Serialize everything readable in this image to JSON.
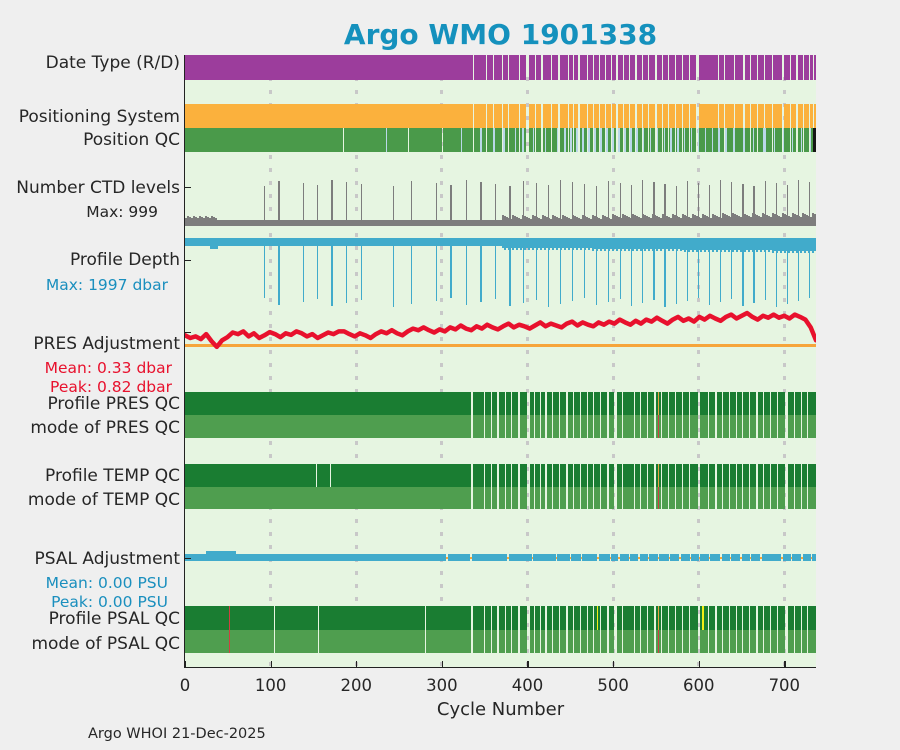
{
  "title": "Argo WMO 1901338",
  "credit": "Argo WHOI 21-Dec-2025",
  "labels": {
    "date_type": "Date Type (R/D)",
    "positioning_system": "Positioning System",
    "position_qc": "Position QC",
    "ctd_levels": "Number CTD levels",
    "ctd_max": "Max: 999",
    "profile_depth": "Profile Depth",
    "depth_max": "Max: 1997 dbar",
    "pres_adj": "PRES Adjustment",
    "pres_mean": "Mean: 0.33 dbar",
    "pres_peak": "Peak: 0.82 dbar",
    "profile_pres_qc": "Profile PRES QC",
    "mode_pres_qc": "mode of PRES QC",
    "profile_temp_qc": "Profile TEMP QC",
    "mode_temp_qc": "mode of TEMP QC",
    "psal_adj": "PSAL Adjustment",
    "psal_mean": "Mean: 0.00 PSU",
    "psal_peak": "Peak: 0.00 PSU",
    "profile_psal_qc": "Profile PSAL QC",
    "mode_psal_qc": "mode of PSAL QC"
  },
  "colors": {
    "background": "#efefef",
    "plot_background": "#e6f5e1",
    "title": "#1591bd",
    "label": "#262626",
    "red_accent": "#e8112d",
    "blue_accent": "#1a8fbe",
    "date_type_band": "#9c3d9c",
    "positioning_band": "#fbb13d",
    "position_qc_band": "#4a9a4a",
    "position_qc_stripe": "#bad8e9",
    "ctd_bar": "#7d7d7d",
    "depth_bar": "#41abcb",
    "zero_line": "#f6a53b",
    "qc_dark": "#1a7d32",
    "qc_mode": "#4f9e4f",
    "mark_red": "#cf4040",
    "mark_yellow": "#f2ee16",
    "mark_orange": "#e8a33d",
    "grid": "#c8c8c8",
    "axis": "#222222",
    "end_cap": "#151515"
  },
  "xaxis": {
    "label": "Cycle Number",
    "ticks": [
      0,
      100,
      200,
      300,
      400,
      500,
      600,
      700
    ]
  },
  "chart_data": {
    "type": "multi-row Argo float QC status chart (bands + time series)",
    "x": {
      "label": "Cycle Number",
      "min": 0,
      "max": 737,
      "ticks": [
        0,
        100,
        200,
        300,
        400,
        500,
        600,
        700
      ]
    },
    "rows": [
      "Date Type (R/D)",
      "Positioning System",
      "Position QC",
      "Number CTD levels",
      "Profile Depth",
      "PRES Adjustment",
      "Profile PRES QC",
      "mode of PRES QC",
      "Profile TEMP QC",
      "mode of TEMP QC",
      "PSAL Adjustment",
      "Profile PSAL QC",
      "mode of PSAL QC"
    ],
    "stats": {
      "ctd_levels_max": 999,
      "profile_depth_max_dbar": 1997,
      "pres_adj_mean_dbar": 0.33,
      "pres_adj_peak_dbar": 0.82,
      "psal_adj_mean_psu": 0.0,
      "psal_adj_peak_psu": 0.0
    },
    "band_gaps": {
      "date_positioning": [
        [
          336,
          2
        ],
        [
          352,
          1
        ],
        [
          360,
          1
        ],
        [
          370,
          1
        ],
        [
          377,
          2
        ],
        [
          390,
          1
        ],
        [
          398,
          4
        ],
        [
          409,
          1
        ],
        [
          416,
          2
        ],
        [
          428,
          1
        ],
        [
          436,
          2
        ],
        [
          447,
          1
        ],
        [
          453,
          1
        ],
        [
          459,
          2
        ],
        [
          470,
          1
        ],
        [
          477,
          1
        ],
        [
          483,
          2
        ],
        [
          491,
          1
        ],
        [
          498,
          1
        ],
        [
          504,
          2
        ],
        [
          512,
          1
        ],
        [
          519,
          1
        ],
        [
          526,
          2
        ],
        [
          534,
          1
        ],
        [
          541,
          1
        ],
        [
          549,
          2
        ],
        [
          557,
          1
        ],
        [
          564,
          1
        ],
        [
          572,
          2
        ],
        [
          581,
          1
        ],
        [
          589,
          1
        ],
        [
          597,
          3
        ],
        [
          608,
          1
        ],
        [
          615,
          1
        ],
        [
          622,
          2
        ],
        [
          630,
          1
        ],
        [
          641,
          1
        ],
        [
          652,
          2
        ],
        [
          660,
          1
        ],
        [
          668,
          1
        ],
        [
          676,
          2
        ],
        [
          686,
          1
        ],
        [
          697,
          3
        ],
        [
          707,
          1
        ],
        [
          714,
          2
        ],
        [
          722,
          1
        ],
        [
          729,
          1
        ],
        [
          734,
          1
        ]
      ],
      "position_qc_extra": [
        [
          185,
          1
        ],
        [
          261,
          1
        ],
        [
          300,
          1
        ]
      ],
      "qc_bands": [
        [
          334,
          2
        ],
        [
          349,
          1
        ],
        [
          357,
          1
        ],
        [
          365,
          2
        ],
        [
          374,
          1
        ],
        [
          381,
          1
        ],
        [
          389,
          2
        ],
        [
          399,
          4
        ],
        [
          408,
          1
        ],
        [
          415,
          1
        ],
        [
          421,
          2
        ],
        [
          429,
          1
        ],
        [
          437,
          1
        ],
        [
          445,
          2
        ],
        [
          453,
          1
        ],
        [
          461,
          1
        ],
        [
          469,
          2
        ],
        [
          477,
          1
        ],
        [
          485,
          1
        ],
        [
          493,
          2
        ],
        [
          501,
          4
        ],
        [
          510,
          1
        ],
        [
          517,
          1
        ],
        [
          524,
          2
        ],
        [
          532,
          1
        ],
        [
          540,
          1
        ],
        [
          548,
          2
        ],
        [
          556,
          1
        ],
        [
          564,
          1
        ],
        [
          572,
          2
        ],
        [
          581,
          1
        ],
        [
          589,
          1
        ],
        [
          599,
          3
        ],
        [
          611,
          1
        ],
        [
          619,
          2
        ],
        [
          627,
          1
        ],
        [
          635,
          1
        ],
        [
          643,
          2
        ],
        [
          651,
          1
        ],
        [
          659,
          1
        ],
        [
          667,
          2
        ],
        [
          675,
          1
        ],
        [
          683,
          1
        ],
        [
          691,
          2
        ],
        [
          701,
          3
        ],
        [
          711,
          1
        ],
        [
          719,
          2
        ],
        [
          727,
          1
        ],
        [
          733,
          1
        ]
      ],
      "temp_dark_extra": [
        [
          153,
          1
        ],
        [
          169,
          1
        ]
      ],
      "psal_extra": [
        [
          104,
          1
        ],
        [
          155,
          1
        ],
        [
          170,
          1
        ],
        [
          280,
          1
        ]
      ]
    },
    "position_qc_stripes": [
      [
        235,
        1
      ],
      [
        322,
        1
      ],
      [
        345,
        1
      ],
      [
        360,
        1
      ],
      [
        372,
        1
      ],
      [
        385,
        1
      ],
      [
        394,
        1
      ],
      [
        406,
        1
      ],
      [
        420,
        1
      ],
      [
        434,
        1
      ],
      [
        443,
        1
      ],
      [
        450,
        1
      ],
      [
        457,
        1
      ],
      [
        464,
        1
      ],
      [
        471,
        1
      ],
      [
        478,
        1
      ],
      [
        485,
        1
      ],
      [
        492,
        1
      ],
      [
        499,
        1
      ],
      [
        506,
        1
      ],
      [
        513,
        1
      ],
      [
        520,
        1
      ],
      [
        527,
        1
      ],
      [
        535,
        1
      ],
      [
        543,
        1
      ],
      [
        551,
        1
      ],
      [
        559,
        1
      ],
      [
        567,
        1
      ],
      [
        575,
        1
      ],
      [
        583,
        1
      ],
      [
        591,
        1
      ],
      [
        599,
        1
      ],
      [
        607,
        1
      ],
      [
        615,
        1
      ],
      [
        623,
        1
      ],
      [
        631,
        1
      ],
      [
        640,
        2
      ],
      [
        652,
        1
      ],
      [
        663,
        1
      ],
      [
        675,
        4
      ],
      [
        688,
        1
      ],
      [
        698,
        1
      ],
      [
        709,
        1
      ],
      [
        719,
        1
      ],
      [
        730,
        1
      ]
    ],
    "spike_cycles": [
      92,
      109,
      138,
      154,
      171,
      188,
      205,
      243,
      264,
      293,
      310,
      328,
      345,
      362,
      379,
      395,
      410,
      424,
      438,
      452,
      466,
      480,
      494,
      508,
      521,
      534,
      547,
      560,
      573,
      586,
      599,
      612,
      625,
      638,
      651,
      664,
      677,
      690,
      703,
      716,
      729
    ],
    "pres_series": {
      "units": "dbar",
      "values": [
        0.25,
        0.18,
        0.22,
        0.15,
        0.28,
        0.1,
        -0.05,
        0.12,
        0.2,
        0.32,
        0.28,
        0.35,
        0.22,
        0.3,
        0.18,
        0.25,
        0.33,
        0.28,
        0.2,
        0.3,
        0.26,
        0.35,
        0.3,
        0.22,
        0.28,
        0.18,
        0.25,
        0.32,
        0.28,
        0.35,
        0.35,
        0.28,
        0.22,
        0.3,
        0.25,
        0.18,
        0.28,
        0.35,
        0.3,
        0.38,
        0.3,
        0.25,
        0.35,
        0.42,
        0.38,
        0.45,
        0.38,
        0.32,
        0.4,
        0.35,
        0.45,
        0.4,
        0.5,
        0.42,
        0.38,
        0.48,
        0.42,
        0.52,
        0.45,
        0.4,
        0.48,
        0.55,
        0.45,
        0.52,
        0.48,
        0.42,
        0.5,
        0.58,
        0.48,
        0.55,
        0.5,
        0.45,
        0.55,
        0.6,
        0.5,
        0.58,
        0.52,
        0.48,
        0.58,
        0.52,
        0.6,
        0.55,
        0.65,
        0.58,
        0.52,
        0.62,
        0.55,
        0.65,
        0.6,
        0.7,
        0.62,
        0.55,
        0.65,
        0.72,
        0.62,
        0.68,
        0.6,
        0.72,
        0.65,
        0.75,
        0.68,
        0.62,
        0.72,
        0.78,
        0.68,
        0.75,
        0.82,
        0.72,
        0.65,
        0.75,
        0.7,
        0.78,
        0.7,
        0.75,
        0.68,
        0.78,
        0.72,
        0.65,
        0.45,
        0.12
      ]
    },
    "psal_line_gaps": [
      [
        305,
        2
      ],
      [
        333,
        2
      ],
      [
        376,
        2
      ],
      [
        405,
        2
      ],
      [
        433,
        2
      ],
      [
        450,
        1
      ],
      [
        462,
        2
      ],
      [
        481,
        2
      ],
      [
        496,
        1
      ],
      [
        506,
        2
      ],
      [
        519,
        1
      ],
      [
        529,
        2
      ],
      [
        541,
        1
      ],
      [
        552,
        2
      ],
      [
        565,
        1
      ],
      [
        577,
        2
      ],
      [
        590,
        1
      ],
      [
        600,
        2
      ],
      [
        612,
        1
      ],
      [
        625,
        2
      ],
      [
        637,
        1
      ],
      [
        648,
        2
      ],
      [
        660,
        1
      ],
      [
        672,
        2
      ],
      [
        684,
        1
      ],
      [
        696,
        2
      ],
      [
        708,
        1
      ],
      [
        720,
        2
      ],
      [
        731,
        1
      ]
    ],
    "psal_bump": [
      25,
      60
    ],
    "marks": {
      "pres_qc": [
        {
          "c": 552,
          "color": "mark_orange",
          "band": "dark"
        },
        {
          "c": 552,
          "color": "mark_red",
          "band": "mode"
        }
      ],
      "temp_qc": [
        {
          "c": 552,
          "color": "mark_orange",
          "band": "dark"
        },
        {
          "c": 552,
          "color": "mark_red",
          "band": "mode"
        }
      ],
      "psal_qc": [
        {
          "c": 51,
          "color": "mark_red",
          "band": "both"
        },
        {
          "c": 481,
          "color": "mark_yellow",
          "band": "dark"
        },
        {
          "c": 604,
          "color": "mark_yellow",
          "band": "dark"
        },
        {
          "c": 552,
          "color": "mark_orange",
          "band": "dark"
        },
        {
          "c": 552,
          "color": "mark_red",
          "band": "mode"
        }
      ]
    }
  }
}
